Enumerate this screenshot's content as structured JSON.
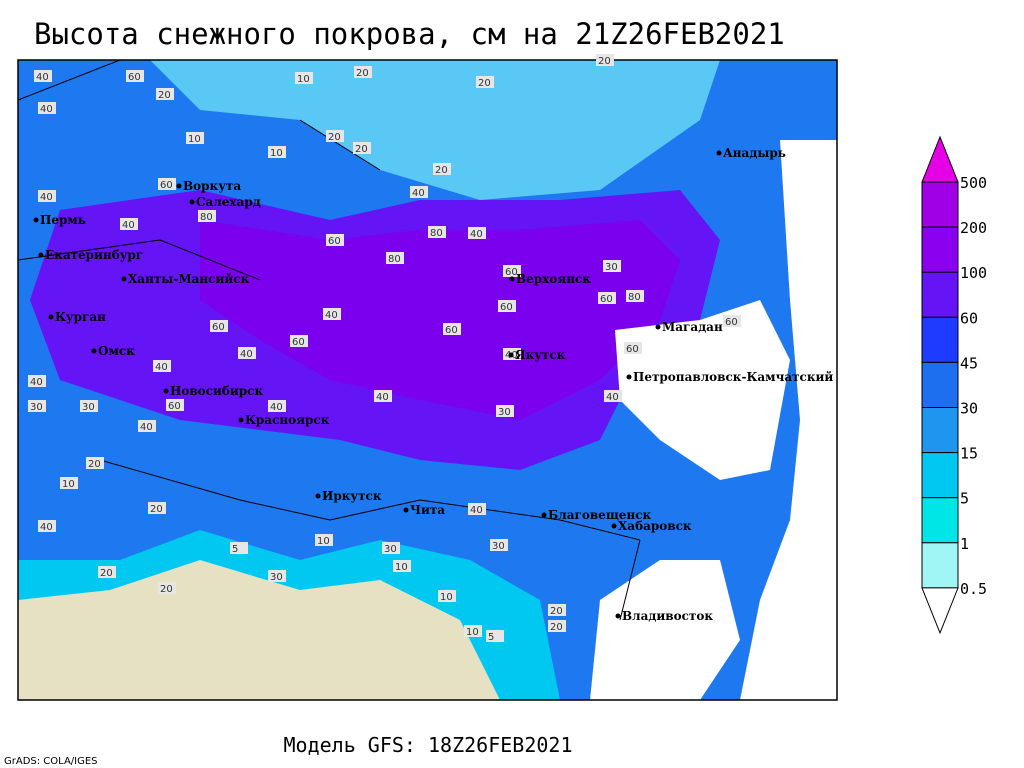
{
  "title": "Высота снежного покрова, см на 21Z26FEB2021",
  "cities": [
    "Анадырь",
    "Воркута",
    "Салехард",
    "Пермь",
    "Екатеринбург",
    "Ханты-Мансийск",
    "Верхоянск",
    "Курган",
    "Магадан",
    "Омск",
    "Якутск",
    "Петропавловск-Камчатский",
    "Новосибирск",
    "Красноярск",
    "Иркутск",
    "Чита",
    "Благовещенск",
    "Хабаровск",
    "Владивосток"
  ],
  "contour_labels": [
    40,
    60,
    20,
    10,
    20,
    20,
    20,
    40,
    10,
    20,
    10,
    20,
    20,
    60,
    40,
    40,
    80,
    60,
    40,
    80,
    40,
    80,
    60,
    80,
    60,
    30,
    60,
    60,
    40,
    60,
    60,
    40,
    40,
    60,
    40,
    40,
    30,
    40,
    40,
    60,
    40,
    30,
    40,
    20,
    10,
    20,
    30,
    10,
    40,
    30,
    10,
    20,
    5,
    20,
    10,
    20,
    30,
    10,
    20,
    5,
    40,
    30,
    60
  ],
  "colorbar": {
    "labels": [
      500,
      200,
      100,
      60,
      45,
      30,
      15,
      5,
      1,
      0.5
    ],
    "colors": [
      "#e600e6",
      "#a000e6",
      "#8c00f0",
      "#6414f5",
      "#1e3cff",
      "#1e6ef0",
      "#1e96f0",
      "#00c8f0",
      "#00e6e6",
      "#a0f5f5",
      "#ffffff"
    ]
  },
  "footer": "Модель GFS: 18Z26FEB2021",
  "credit": "GrADS: COLA/IGES"
}
